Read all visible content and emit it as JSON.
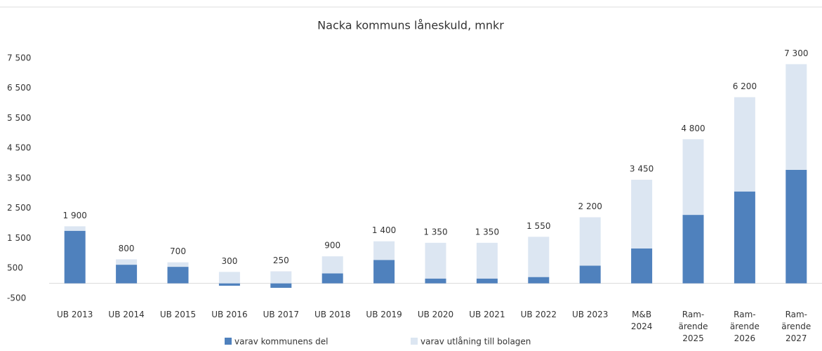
{
  "chart_data": {
    "type": "stacked_bar",
    "title": "Nacka kommuns låneskuld, mnkr",
    "categories": [
      "UB 2013",
      "UB 2014",
      "UB 2015",
      "UB 2016",
      "UB 2017",
      "UB 2018",
      "UB 2019",
      "UB 2020",
      "UB 2021",
      "UB 2022",
      "UB 2023",
      "M&B\n2024",
      "Ram-\närende\n2025",
      "Ram-\närende\n2026",
      "Ram-\närende\n2027"
    ],
    "series": [
      {
        "name": "varav kommunens del",
        "color": "#4f81bd",
        "values": [
          1750,
          620,
          550,
          -80,
          -150,
          330,
          780,
          160,
          160,
          210,
          590,
          1160,
          2280,
          3060,
          3780
        ]
      },
      {
        "name": "varav utlåning till bolagen",
        "color": "#dce6f2",
        "values": [
          150,
          180,
          150,
          380,
          400,
          570,
          620,
          1190,
          1190,
          1340,
          1610,
          2290,
          2520,
          3140,
          3520
        ]
      }
    ],
    "totals": [
      1900,
      800,
      700,
      300,
      250,
      900,
      1400,
      1350,
      1350,
      1550,
      2200,
      3450,
      4800,
      6200,
      7300
    ],
    "total_labels": [
      "1 900",
      "800",
      "700",
      "300",
      "250",
      "900",
      "1 400",
      "1 350",
      "1 350",
      "1 550",
      "2 200",
      "3 450",
      "4 800",
      "6 200",
      "7 300"
    ],
    "ylim": [
      -500,
      7800
    ],
    "yticks": [
      {
        "value": -500,
        "label": "-500"
      },
      500,
      {
        "value": 1500,
        "label": "1 500"
      },
      {
        "value": 2500,
        "label": "2 500"
      },
      {
        "value": 3500,
        "label": "3 500"
      },
      {
        "value": 4500,
        "label": "4 500"
      },
      {
        "value": 5500,
        "label": "5 500"
      },
      {
        "value": 6500,
        "label": "6 500"
      },
      {
        "value": 7500,
        "label": "7 500"
      }
    ],
    "grid": false,
    "legend": "bottom"
  }
}
